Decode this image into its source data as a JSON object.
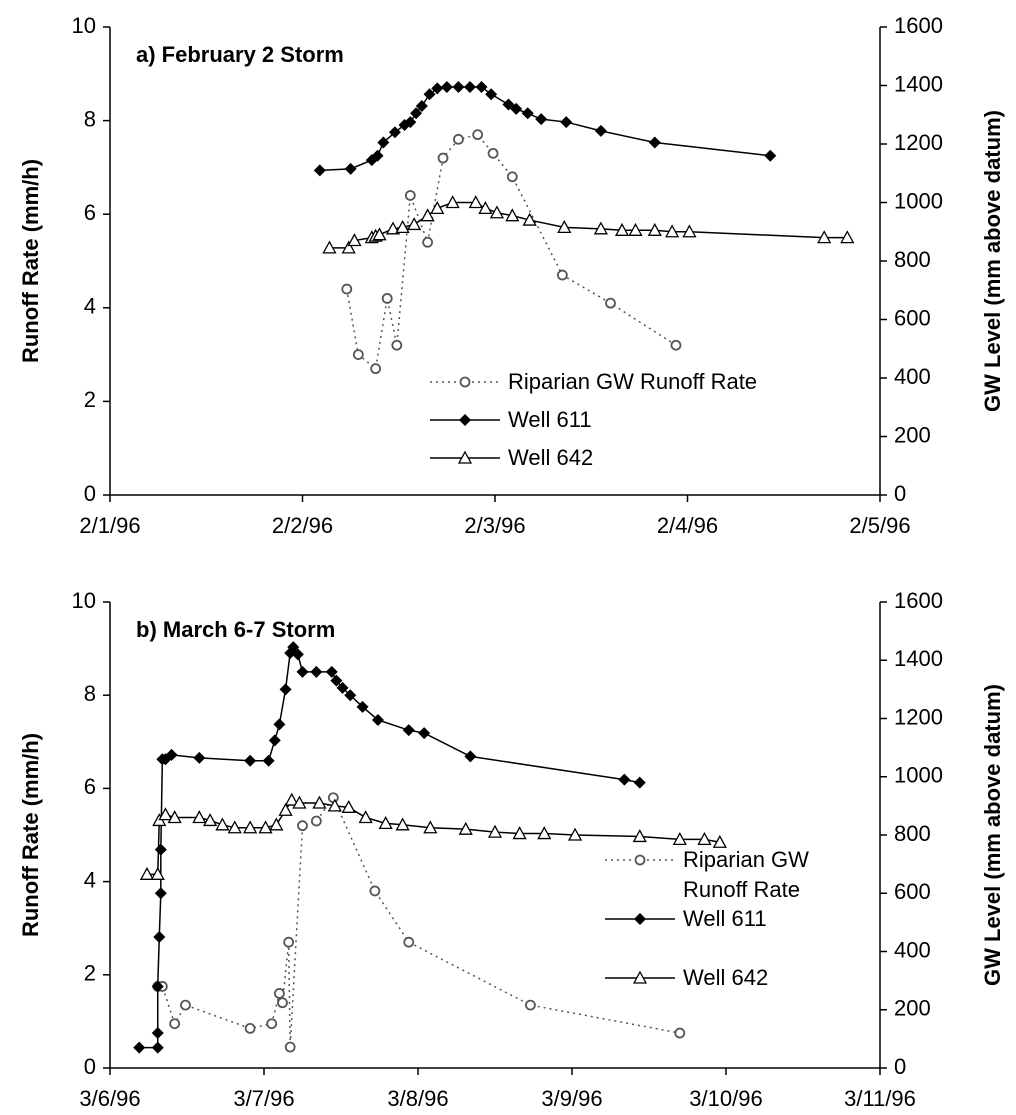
{
  "chart_data": [
    {
      "type": "line",
      "title": "a) February 2 Storm",
      "ylabel": "Runoff Rate (mm/h)",
      "y2label": "GW Level (mm above datum)",
      "xlim": [
        0,
        4
      ],
      "xticks": [
        {
          "value": 0,
          "label": "2/1/96"
        },
        {
          "value": 1,
          "label": "2/2/96"
        },
        {
          "value": 2,
          "label": "2/3/96"
        },
        {
          "value": 3,
          "label": "2/4/96"
        },
        {
          "value": 4,
          "label": "2/5/96"
        }
      ],
      "ylim": [
        0,
        10
      ],
      "yticks": [
        0,
        2,
        4,
        6,
        8,
        10
      ],
      "y2lim": [
        0,
        1600
      ],
      "y2ticks": [
        0,
        200,
        400,
        600,
        800,
        1000,
        1200,
        1400,
        1600
      ],
      "series": [
        {
          "name": "Riparian GW Runoff Rate",
          "color": "#555555",
          "marker": "circle",
          "linestyle": "dotted",
          "x": [
            1.23,
            1.29,
            1.38,
            1.44,
            1.49,
            1.56,
            1.65,
            1.73,
            1.81,
            1.91,
            1.99,
            2.09,
            2.35,
            2.6,
            2.94
          ],
          "values": [
            4.4,
            3.0,
            2.7,
            4.2,
            3.2,
            6.4,
            5.4,
            7.2,
            7.6,
            7.7,
            7.3,
            6.8,
            4.7,
            4.1,
            3.2
          ]
        },
        {
          "name": "Well 611",
          "color": "#000000",
          "marker": "diamond",
          "linestyle": "solid",
          "axis": "y2",
          "x": [
            1.09,
            1.25,
            1.36,
            1.39,
            1.42,
            1.48,
            1.53,
            1.56,
            1.59,
            1.62,
            1.66,
            1.7,
            1.75,
            1.81,
            1.87,
            1.93,
            1.98,
            2.07,
            2.11,
            2.17,
            2.24,
            2.37,
            2.55,
            2.83,
            3.43
          ],
          "values": [
            1110,
            1115,
            1145,
            1160,
            1205,
            1240,
            1265,
            1275,
            1305,
            1330,
            1370,
            1390,
            1395,
            1395,
            1395,
            1395,
            1370,
            1335,
            1320,
            1305,
            1285,
            1275,
            1245,
            1205,
            1160
          ]
        },
        {
          "name": "Well 642",
          "color": "#000000",
          "marker": "triangle",
          "linestyle": "solid",
          "axis": "y2",
          "x": [
            1.14,
            1.24,
            1.27,
            1.36,
            1.38,
            1.4,
            1.47,
            1.52,
            1.58,
            1.65,
            1.7,
            1.78,
            1.9,
            1.95,
            2.01,
            2.09,
            2.18,
            2.36,
            2.55,
            2.66,
            2.73,
            2.83,
            2.92,
            3.01,
            3.71,
            3.83
          ],
          "values": [
            845,
            845,
            870,
            880,
            885,
            890,
            910,
            915,
            925,
            955,
            980,
            1000,
            1000,
            980,
            965,
            955,
            940,
            915,
            910,
            905,
            905,
            905,
            900,
            900,
            880,
            880
          ]
        }
      ]
    },
    {
      "type": "line",
      "title": "b) March 6-7 Storm",
      "ylabel": "Runoff Rate (mm/h)",
      "y2label": "GW Level (mm above datum)",
      "xlim": [
        0,
        5
      ],
      "xticks": [
        {
          "value": 0,
          "label": "3/6/96"
        },
        {
          "value": 1,
          "label": "3/7/96"
        },
        {
          "value": 2,
          "label": "3/8/96"
        },
        {
          "value": 3,
          "label": "3/9/96"
        },
        {
          "value": 4,
          "label": "3/10/96"
        },
        {
          "value": 5,
          "label": "3/11/96"
        }
      ],
      "ylim": [
        0,
        10
      ],
      "yticks": [
        0,
        2,
        4,
        6,
        8,
        10
      ],
      "y2lim": [
        0,
        1600
      ],
      "y2ticks": [
        0,
        200,
        400,
        600,
        800,
        1000,
        1200,
        1400,
        1600
      ],
      "series": [
        {
          "name": "Riparian GW Runoff Rate",
          "color": "#555555",
          "marker": "circle",
          "linestyle": "dotted",
          "x": [
            0.31,
            0.34,
            0.42,
            0.49,
            0.91,
            1.05,
            1.1,
            1.12,
            1.16,
            1.17,
            1.25,
            1.34,
            1.45,
            1.72,
            1.94,
            2.73,
            3.7
          ],
          "values": [
            1.75,
            1.75,
            0.95,
            1.35,
            0.85,
            0.95,
            1.6,
            1.4,
            2.7,
            0.45,
            5.2,
            5.3,
            5.8,
            3.8,
            2.7,
            1.35,
            0.75
          ]
        },
        {
          "name": "Well 611",
          "color": "#000000",
          "marker": "diamond",
          "linestyle": "solid",
          "axis": "y2",
          "x": [
            0.19,
            0.31,
            0.31,
            0.31,
            0.32,
            0.33,
            0.33,
            0.34,
            0.36,
            0.4,
            0.58,
            0.91,
            1.03,
            1.07,
            1.1,
            1.14,
            1.17,
            1.19,
            1.22,
            1.25,
            1.34,
            1.44,
            1.47,
            1.51,
            1.56,
            1.64,
            1.74,
            1.94,
            2.04,
            2.34,
            3.34,
            3.44
          ],
          "values": [
            70,
            70,
            120,
            280,
            450,
            600,
            750,
            1060,
            1060,
            1075,
            1065,
            1055,
            1055,
            1125,
            1180,
            1300,
            1425,
            1445,
            1420,
            1360,
            1360,
            1360,
            1330,
            1305,
            1280,
            1240,
            1195,
            1160,
            1150,
            1070,
            990,
            980
          ]
        },
        {
          "name": "Well 642",
          "color": "#000000",
          "marker": "triangle",
          "linestyle": "solid",
          "axis": "y2",
          "x": [
            0.24,
            0.31,
            0.32,
            0.36,
            0.42,
            0.58,
            0.65,
            0.73,
            0.81,
            0.91,
            1.01,
            1.08,
            1.14,
            1.18,
            1.23,
            1.36,
            1.46,
            1.55,
            1.66,
            1.79,
            1.9,
            2.08,
            2.31,
            2.5,
            2.66,
            2.82,
            3.02,
            3.44,
            3.7,
            3.86,
            3.96
          ],
          "values": [
            665,
            665,
            850,
            870,
            860,
            860,
            850,
            835,
            825,
            825,
            825,
            835,
            885,
            920,
            910,
            910,
            900,
            895,
            860,
            840,
            835,
            825,
            820,
            810,
            805,
            805,
            800,
            795,
            785,
            785,
            775
          ]
        }
      ]
    }
  ]
}
